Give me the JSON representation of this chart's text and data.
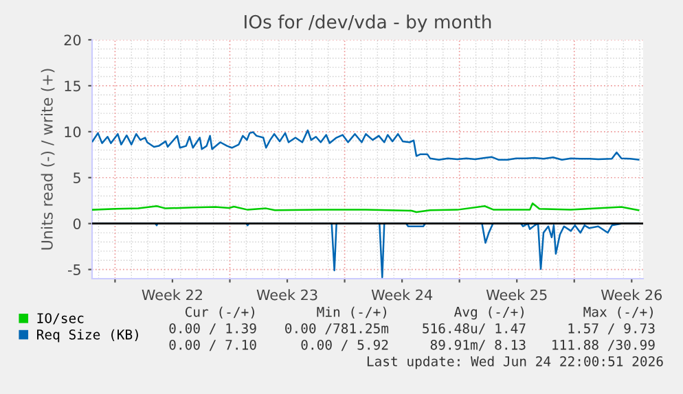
{
  "chart_data": {
    "type": "line",
    "title": "IOs for /dev/vda - by month",
    "ylabel": "Units read (-) / write (+)",
    "xlim": [
      "2026-05-22T14:24",
      "2026-06-25T04:48"
    ],
    "xticks": [
      {
        "value": "2026-05-24",
        "label": null
      },
      {
        "value": "2026-05-27T12:00",
        "label": "Week 22"
      },
      {
        "value": "2026-05-31",
        "label": null
      },
      {
        "value": "2026-06-03T12:00",
        "label": "Week 23"
      },
      {
        "value": "2026-06-07",
        "label": null
      },
      {
        "value": "2026-06-10T12:00",
        "label": "Week 24"
      },
      {
        "value": "2026-06-14",
        "label": null
      },
      {
        "value": "2026-06-17T12:00",
        "label": "Week 25"
      },
      {
        "value": "2026-06-21",
        "label": null
      },
      {
        "value": "2026-06-24T12:00",
        "label": "Week 26"
      }
    ],
    "ylim": [
      -6,
      20
    ],
    "yticks": [
      -5,
      0,
      5,
      10,
      15,
      20
    ],
    "grid": true,
    "legend": "bottom left",
    "marker": "none",
    "line_style": "solid",
    "ref_lines": [
      {
        "axis": "y",
        "value": 0,
        "color": "#000000"
      }
    ],
    "series": [
      {
        "name": "IO/sec",
        "color": "#00cc00",
        "x": [
          "2026-05-22T15:00",
          "2026-05-24T01:00",
          "2026-05-25T10:00",
          "2026-05-26T13:00",
          "2026-05-27T02:00",
          "2026-05-28T18:00",
          "2026-05-30T03:00",
          "2026-05-30T23:00",
          "2026-05-31T06:00",
          "2026-06-01T02:00",
          "2026-06-02T05:00",
          "2026-06-02T18:00",
          "2026-06-05T13:00",
          "2026-06-08T07:00",
          "2026-06-11T02:00",
          "2026-06-11T09:00",
          "2026-06-12T05:00",
          "2026-06-13T21:00",
          "2026-06-15T13:00",
          "2026-06-16T02:00",
          "2026-06-18T07:00",
          "2026-06-18T11:00",
          "2026-06-18T21:00",
          "2026-06-20T19:00",
          "2026-06-23T21:00",
          "2026-06-24T22:00"
        ],
        "values": [
          1.5,
          1.6,
          1.65,
          1.9,
          1.65,
          1.75,
          1.8,
          1.7,
          1.85,
          1.5,
          1.65,
          1.45,
          1.5,
          1.5,
          1.4,
          1.25,
          1.45,
          1.5,
          1.9,
          1.5,
          1.5,
          2.2,
          1.6,
          1.5,
          1.8,
          1.45
        ]
      },
      {
        "name": "Req Size (KB)",
        "color": "#0066b3",
        "x": [
          "2026-05-22T15:00",
          "2026-05-22T23:00",
          "2026-05-23T05:00",
          "2026-05-23T13:00",
          "2026-05-23T18:00",
          "2026-05-24T04:00",
          "2026-05-24T09:00",
          "2026-05-24T17:00",
          "2026-05-25T00:00",
          "2026-05-25T07:00",
          "2026-05-25T13:00",
          "2026-05-25T20:00",
          "2026-05-25T23:00",
          "2026-05-26T09:00",
          "2026-05-26T16:00",
          "2026-05-27T02:00",
          "2026-05-27T05:00",
          "2026-05-27T19:00",
          "2026-05-27T23:00",
          "2026-05-28T08:00",
          "2026-05-28T13:00",
          "2026-05-28T18:00",
          "2026-05-29T04:00",
          "2026-05-29T07:00",
          "2026-05-29T14:00",
          "2026-05-29T19:00",
          "2026-05-29T22:00",
          "2026-05-30T10:00",
          "2026-05-30T20:00",
          "2026-05-31T03:00",
          "2026-05-31T13:00",
          "2026-05-31T19:00",
          "2026-06-01T01:00",
          "2026-06-01T05:00",
          "2026-06-01T10:00",
          "2026-06-01T15:00",
          "2026-06-02T01:00",
          "2026-06-02T05:00",
          "2026-06-02T11:00",
          "2026-06-02T17:00",
          "2026-06-03T01:00",
          "2026-06-03T09:00",
          "2026-06-03T14:00",
          "2026-06-04T00:00",
          "2026-06-04T10:00",
          "2026-06-04T18:00",
          "2026-06-04T23:00",
          "2026-06-05T06:00",
          "2026-06-05T13:00",
          "2026-06-05T21:00",
          "2026-06-06T02:00",
          "2026-06-06T12:00",
          "2026-06-06T21:00",
          "2026-06-07T05:00",
          "2026-06-07T15:00",
          "2026-06-08T01:00",
          "2026-06-08T07:00",
          "2026-06-08T17:00",
          "2026-06-09T02:00",
          "2026-06-09T10:00",
          "2026-06-09T15:00",
          "2026-06-09T22:00",
          "2026-06-10T06:00",
          "2026-06-10T13:00",
          "2026-06-10T23:00",
          "2026-06-11T05:00",
          "2026-06-11T09:00",
          "2026-06-11T15:00",
          "2026-06-12T01:00",
          "2026-06-12T05:00",
          "2026-06-12T18:00",
          "2026-06-13T07:00",
          "2026-06-13T21:00",
          "2026-06-14T10:00",
          "2026-06-14T23:00",
          "2026-06-15T13:00",
          "2026-06-15T23:00",
          "2026-06-16T09:00",
          "2026-06-16T22:00",
          "2026-06-17T11:00",
          "2026-06-18T01:00",
          "2026-06-18T14:00",
          "2026-06-19T03:00",
          "2026-06-19T17:00",
          "2026-06-20T06:00",
          "2026-06-20T19:00",
          "2026-06-21T09:00",
          "2026-06-21T22:00",
          "2026-06-22T11:00",
          "2026-06-23T07:00",
          "2026-06-23T14:00",
          "2026-06-23T21:00",
          "2026-06-24T10:00",
          "2026-06-24T22:00"
        ],
        "values": [
          8.95,
          9.85,
          8.75,
          9.45,
          8.75,
          9.75,
          8.6,
          9.6,
          8.6,
          9.75,
          9.1,
          9.35,
          8.85,
          8.35,
          8.45,
          8.95,
          8.35,
          9.55,
          8.25,
          8.45,
          9.45,
          8.25,
          9.35,
          8.1,
          8.45,
          9.55,
          8.1,
          8.85,
          8.45,
          8.25,
          8.6,
          9.55,
          9.1,
          9.85,
          9.95,
          9.55,
          9.35,
          8.25,
          9.1,
          9.75,
          8.95,
          9.85,
          8.85,
          9.35,
          8.85,
          10.15,
          9.1,
          9.45,
          8.85,
          9.65,
          8.75,
          9.35,
          9.65,
          8.85,
          9.75,
          8.85,
          9.75,
          9.1,
          9.55,
          8.85,
          9.65,
          8.95,
          9.75,
          8.95,
          8.85,
          9.05,
          7.35,
          7.55,
          7.55,
          7.1,
          6.95,
          7.1,
          7.0,
          7.1,
          7.0,
          7.15,
          7.25,
          6.95,
          6.95,
          7.1,
          7.1,
          7.15,
          7.05,
          7.2,
          6.95,
          7.1,
          7.05,
          7.05,
          7.0,
          7.05,
          7.75,
          7.1,
          7.05,
          6.95
        ]
      },
      {
        "color": "#0066b3",
        "x": [
          "2026-05-22T15:00",
          "2026-05-26T11:00",
          "2026-05-26T13:00",
          "2026-05-26T14:00",
          "2026-06-01T00:00",
          "2026-06-01T02:00",
          "2026-06-01T04:00",
          "2026-06-06T05:00",
          "2026-06-06T09:00",
          "2026-06-06T12:00",
          "2026-06-09T03:00",
          "2026-06-09T07:00",
          "2026-06-09T10:00",
          "2026-06-10T18:00",
          "2026-06-10T21:00",
          "2026-06-11T19:00",
          "2026-06-11T22:00",
          "2026-06-15T09:00",
          "2026-06-15T14:00",
          "2026-06-15T19:00",
          "2026-06-16T01:00",
          "2026-06-17T18:00",
          "2026-06-17T21:00",
          "2026-06-18T04:00",
          "2026-06-18T07:00",
          "2026-06-18T14:00",
          "2026-06-18T19:00",
          "2026-06-18T23:00",
          "2026-06-19T03:00",
          "2026-06-19T10:00",
          "2026-06-19T15:00",
          "2026-06-19T18:00",
          "2026-06-19T21:00",
          "2026-06-20T03:00",
          "2026-06-20T09:00",
          "2026-06-20T19:00",
          "2026-06-21T01:00",
          "2026-06-21T09:00",
          "2026-06-21T15:00",
          "2026-06-21T22:00",
          "2026-06-22T11:00",
          "2026-06-23T01:00",
          "2026-06-23T07:00",
          "2026-06-23T21:00",
          "2026-06-24T22:00"
        ],
        "values": [
          0,
          0,
          -0.2,
          0,
          0,
          -0.2,
          0,
          0,
          -5.1,
          0,
          0,
          -5.85,
          0,
          0,
          -0.3,
          -0.3,
          0,
          0,
          -2.1,
          -1.0,
          0,
          0,
          -0.3,
          0,
          -0.6,
          -0.2,
          0,
          -4.95,
          -1.0,
          -0.3,
          -1.5,
          -0.2,
          -3.3,
          -1.2,
          -0.3,
          -0.8,
          -0.2,
          -1.0,
          -0.2,
          -0.5,
          -0.3,
          -1.0,
          -0.2,
          0,
          0
        ]
      }
    ],
    "annotations": [
      "Cur (-/+)",
      "Min (-/+)",
      "Avg (-/+)",
      "Max (-/+)",
      "0.00 / 1.39",
      "0.00 /781.25m",
      "516.48u/ 1.47",
      "1.57 / 9.73",
      "0.00 / 7.10",
      "0.00 / 5.92",
      "89.91m/ 8.13",
      "111.88 /30.99",
      "Last update: Wed Jun 24 22:00:51 2026"
    ]
  }
}
